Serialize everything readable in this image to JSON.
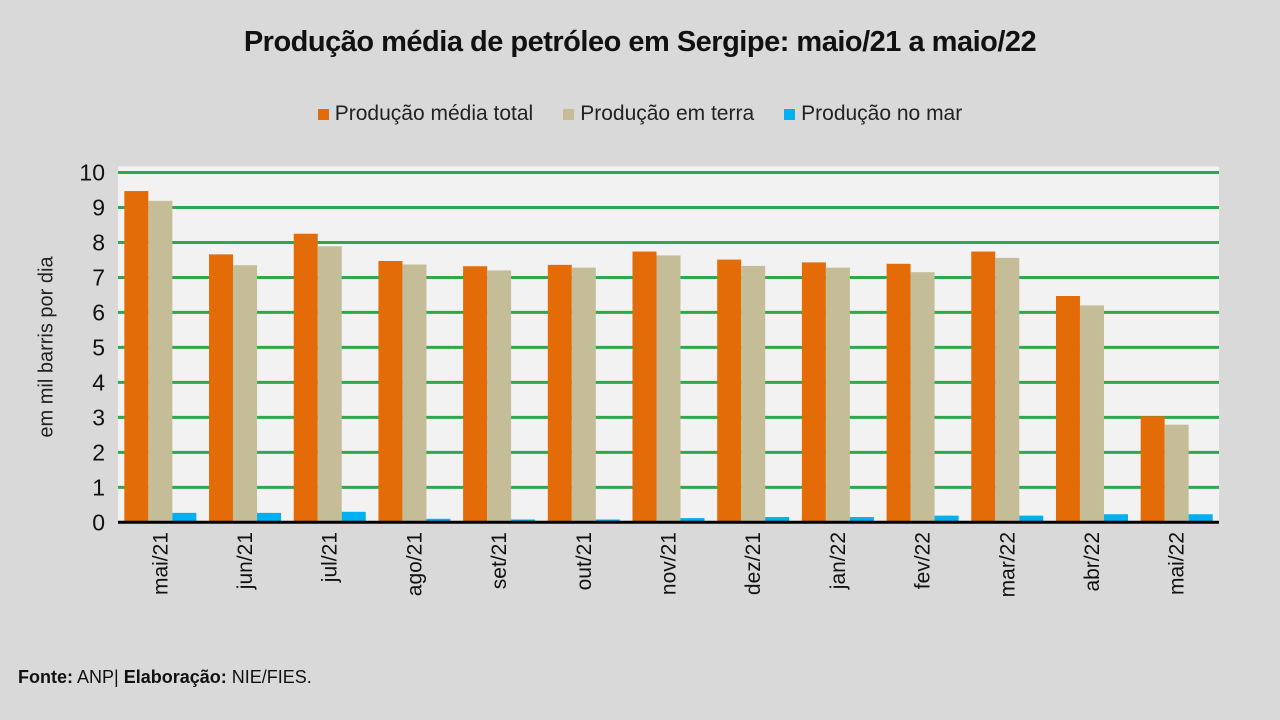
{
  "chart_data": {
    "type": "bar",
    "title": "Produção média de petróleo em Sergipe:  maio/21 a maio/22",
    "xlabel": "",
    "ylabel": "em mil barris por dia",
    "ylim": [
      0,
      10
    ],
    "yticks": [
      0,
      1,
      2,
      3,
      4,
      5,
      6,
      7,
      8,
      9,
      10
    ],
    "grid": true,
    "legend_position": "top",
    "categories": [
      "mai/21",
      "jun/21",
      "jul/21",
      "ago/21",
      "set/21",
      "out/21",
      "nov/21",
      "dez/21",
      "jan/22",
      "fev/22",
      "mar/22",
      "abr/22",
      "mai/22"
    ],
    "series": [
      {
        "name": "Produção média total",
        "color": "#E36C09",
        "values": [
          9.47,
          7.66,
          8.25,
          7.47,
          7.32,
          7.36,
          7.74,
          7.51,
          7.43,
          7.39,
          7.74,
          6.47,
          3.03
        ]
      },
      {
        "name": "Produção em terra",
        "color": "#C4BD97",
        "values": [
          9.19,
          7.35,
          7.89,
          7.37,
          7.2,
          7.28,
          7.63,
          7.33,
          7.28,
          7.15,
          7.56,
          6.2,
          2.79
        ]
      },
      {
        "name": "Produção no mar",
        "color": "#00B0F0",
        "values": [
          0.27,
          0.27,
          0.3,
          0.1,
          0.08,
          0.08,
          0.12,
          0.15,
          0.15,
          0.19,
          0.19,
          0.23,
          0.23
        ]
      }
    ]
  },
  "colors": {
    "page_background": "#D9D9D9",
    "plot_background": "#F2F2F2",
    "gridline": "#2EA84A",
    "axis": "#000000"
  },
  "footer": {
    "source_label": "Fonte:",
    "source_value": "ANP|",
    "credit_label": "Elaboração:",
    "credit_value": "NIE/FIES."
  }
}
